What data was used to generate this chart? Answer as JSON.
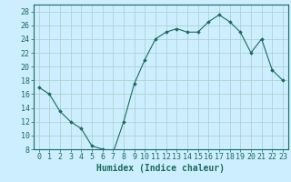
{
  "x": [
    0,
    1,
    2,
    3,
    4,
    5,
    6,
    7,
    8,
    9,
    10,
    11,
    12,
    13,
    14,
    15,
    16,
    17,
    18,
    19,
    20,
    21,
    22,
    23
  ],
  "y": [
    17,
    16,
    13.5,
    12,
    11,
    8.5,
    8,
    7.5,
    12,
    17.5,
    21,
    24,
    25,
    25.5,
    25,
    25,
    26.5,
    27.5,
    26.5,
    25,
    22,
    24,
    19.5,
    18
  ],
  "line_color": "#1a6b5e",
  "marker_color": "#1a6b5e",
  "bg_color": "#cceeff",
  "grid_color": "#aacccc",
  "xlabel": "Humidex (Indice chaleur)",
  "xlabel_fontsize": 7,
  "tick_fontsize": 6,
  "ylim": [
    8,
    29
  ],
  "yticks": [
    8,
    10,
    12,
    14,
    16,
    18,
    20,
    22,
    24,
    26,
    28
  ],
  "xlim": [
    -0.5,
    23.5
  ],
  "xticks": [
    0,
    1,
    2,
    3,
    4,
    5,
    6,
    7,
    8,
    9,
    10,
    11,
    12,
    13,
    14,
    15,
    16,
    17,
    18,
    19,
    20,
    21,
    22,
    23
  ],
  "xtick_labels": [
    "0",
    "1",
    "2",
    "3",
    "4",
    "5",
    "6",
    "7",
    "8",
    "9",
    "10",
    "11",
    "12",
    "13",
    "14",
    "15",
    "16",
    "17",
    "18",
    "19",
    "20",
    "21",
    "22",
    "23"
  ]
}
